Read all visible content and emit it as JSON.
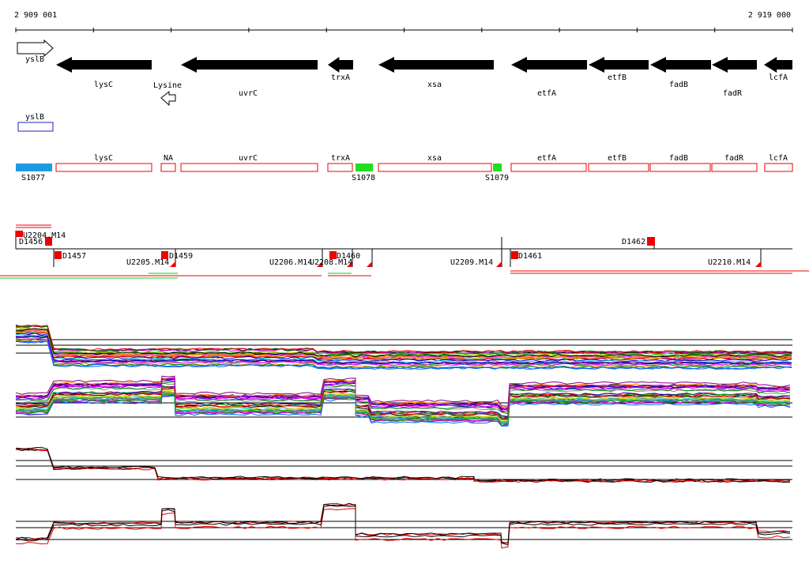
{
  "scale": {
    "start": "2 909 001",
    "end": "2 919 000"
  },
  "genes": [
    "yslB",
    "lysC",
    "Lysine",
    "uvrC",
    "trxA",
    "xsa",
    "etfA",
    "etfB",
    "fadB",
    "fadR",
    "lcfA"
  ],
  "ncrna": [
    "yslB"
  ],
  "operons": {
    "genes": [
      "lysC",
      "NA",
      "uvrC",
      "trxA",
      "xsa",
      "etfA",
      "etfB",
      "fadB",
      "fadR",
      "lcfA"
    ],
    "sites": [
      "S1077",
      "S1078",
      "S1079"
    ]
  },
  "segments": [
    "U2204.M14",
    "D1456",
    "D1457",
    "U2205.M14",
    "D1459",
    "D1460",
    "U2206.M14",
    "U2208.M14",
    "U2209.M14",
    "D1461",
    "D1462",
    "U2210.M14"
  ]
}
